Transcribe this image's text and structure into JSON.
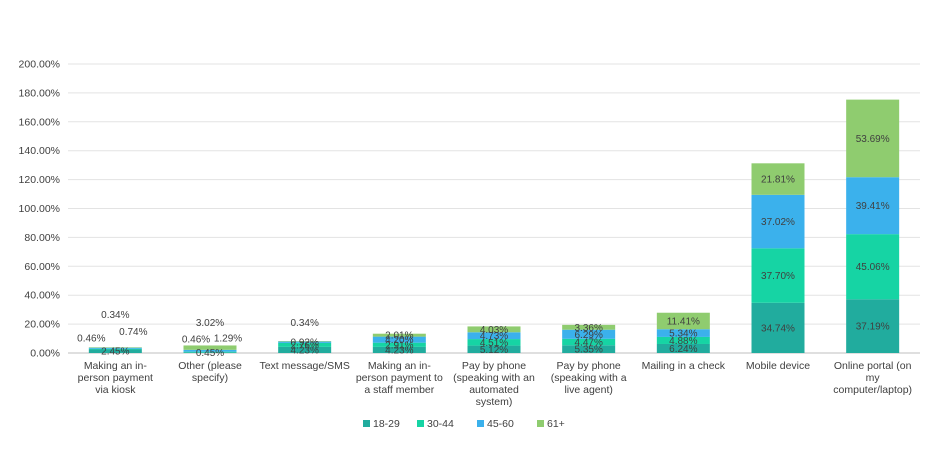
{
  "chart_data": {
    "type": "bar",
    "stacked": true,
    "ylim": [
      0,
      200
    ],
    "y_ticks": [
      "0.00%",
      "20.00%",
      "40.00%",
      "60.00%",
      "80.00%",
      "100.00%",
      "120.00%",
      "140.00%",
      "160.00%",
      "180.00%",
      "200.00%"
    ],
    "grid": true,
    "legend_position": "bottom",
    "categories": [
      [
        "Making an in-",
        "person payment",
        "via kiosk"
      ],
      [
        "Other (please",
        "specify)"
      ],
      [
        "Text message/SMS"
      ],
      [
        "Making an in-",
        "person payment to",
        "a staff member"
      ],
      [
        "Pay by phone",
        "(speaking with an",
        "automated",
        "system)"
      ],
      [
        "Pay by phone",
        "(speaking with a",
        "live agent)"
      ],
      [
        "Mailing in a check"
      ],
      [
        "Mobile device"
      ],
      [
        "Online portal (on",
        "my",
        "computer/laptop)"
      ]
    ],
    "series": [
      {
        "name": "18-29",
        "color": "#21ac9e",
        "values": [
          2.45,
          0.45,
          4.23,
          4.23,
          5.12,
          5.35,
          6.24,
          34.74,
          37.19
        ]
      },
      {
        "name": "30-44",
        "color": "#16d4a4",
        "values": [
          0.46,
          0.46,
          2.76,
          2.91,
          4.51,
          4.47,
          4.88,
          37.7,
          45.06
        ]
      },
      {
        "name": "45-60",
        "color": "#3bb1ec",
        "values": [
          0.74,
          1.29,
          0.92,
          4.2,
          4.73,
          6.29,
          5.34,
          37.02,
          39.41
        ]
      },
      {
        "name": "61+",
        "color": "#8fcc6f",
        "values": [
          0.34,
          3.02,
          0.34,
          2.01,
          4.03,
          3.36,
          11.41,
          21.81,
          53.69
        ]
      }
    ]
  }
}
